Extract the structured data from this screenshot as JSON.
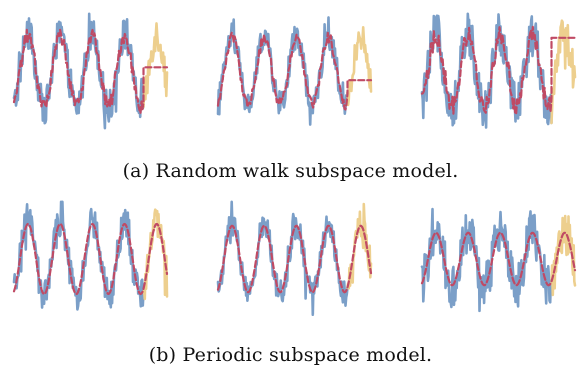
{
  "captions": {
    "a": "(a) Random walk subspace model.",
    "b": "(b) Periodic subspace model."
  },
  "colors": {
    "observed": "#7b9fc8",
    "forecast_truth": "#edcf8e",
    "model": "#c04a64"
  },
  "chart_data": [
    {
      "type": "line",
      "panel": "a1",
      "model": "random walk",
      "split_index": 33,
      "n": 40,
      "period": 8.2,
      "amplitude": 1.0,
      "noise": 0.45,
      "forecast_level": 0.1,
      "x": [
        0,
        39
      ],
      "ylim": [
        -1.6,
        1.6
      ],
      "grid": false,
      "axes": false
    },
    {
      "type": "line",
      "panel": "a2",
      "model": "random walk",
      "split_index": 33,
      "n": 40,
      "period": 8.2,
      "amplitude": 0.95,
      "noise": 0.35,
      "forecast_level": -0.25,
      "x": [
        0,
        39
      ],
      "ylim": [
        -1.6,
        1.6
      ],
      "grid": false,
      "axes": false
    },
    {
      "type": "line",
      "panel": "a3",
      "model": "random walk",
      "split_index": 33,
      "n": 40,
      "period": 8.2,
      "amplitude": 1.0,
      "noise": 0.6,
      "forecast_level": 0.9,
      "x": [
        0,
        39
      ],
      "ylim": [
        -1.6,
        1.6
      ],
      "grid": false,
      "axes": false
    },
    {
      "type": "line",
      "panel": "b1",
      "model": "periodic",
      "split_index": 33,
      "n": 40,
      "period": 8.2,
      "amplitude": 1.0,
      "noise": 0.45,
      "x": [
        0,
        39
      ],
      "ylim": [
        -1.6,
        1.6
      ],
      "grid": false,
      "axes": false
    },
    {
      "type": "line",
      "panel": "b2",
      "model": "periodic",
      "split_index": 33,
      "n": 40,
      "period": 8.2,
      "amplitude": 0.95,
      "noise": 0.35,
      "x": [
        0,
        39
      ],
      "ylim": [
        -1.6,
        1.6
      ],
      "grid": false,
      "axes": false
    },
    {
      "type": "line",
      "panel": "b3",
      "model": "periodic",
      "split_index": 33,
      "n": 40,
      "period": 8.2,
      "amplitude": 0.75,
      "noise": 0.6,
      "x": [
        0,
        39
      ],
      "ylim": [
        -1.6,
        1.6
      ],
      "grid": false,
      "axes": false
    }
  ]
}
